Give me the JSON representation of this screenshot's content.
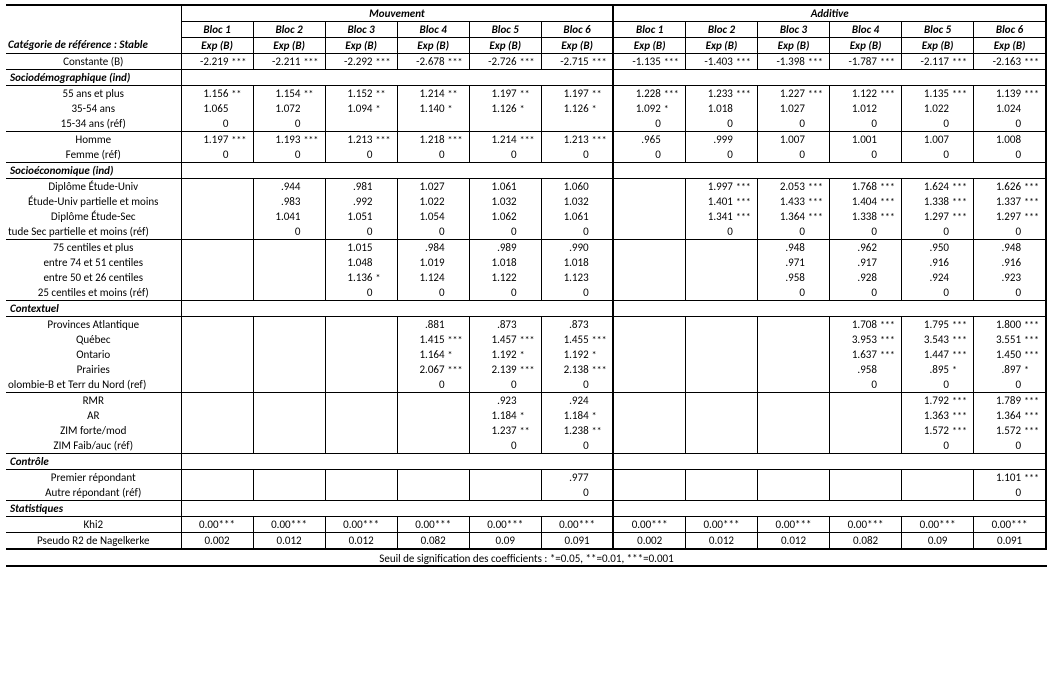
{
  "top_headers": {
    "group1": "Mouvement",
    "group2": "Additive"
  },
  "bloc_labels": [
    "Bloc 1",
    "Bloc 2",
    "Bloc 3",
    "Bloc 4",
    "Bloc 5",
    "Bloc 6"
  ],
  "expb_label": "Exp (B)",
  "ref_category_label": "Catégorie de référence : Stable",
  "sections": {
    "constante": "Constante (B)",
    "sociodemo": "Sociodémographique (ind)",
    "socioeco": "Socioéconomique (ind)",
    "contextuel": "Contextuel",
    "controle": "Contrôle",
    "stats": "Statistiques"
  },
  "row_labels": {
    "age55": "55 ans et plus",
    "age3554": "35-54 ans",
    "age1534": "15-34 ans (réf)",
    "homme": "Homme",
    "femme": "Femme (réf)",
    "dip_univ": "Diplôme Étude-Univ",
    "univ_part": "Étude-Univ partielle et moins",
    "dip_sec": "Diplôme Étude-Sec",
    "sec_part": "tude Sec partielle et moins (réf)",
    "c75": "75 centiles et plus",
    "c7451": "entre 74 et 51 centiles",
    "c5026": "entre 50 et 26 centiles",
    "c25": "25 centiles et moins (réf)",
    "atl": "Provinces Atlantique",
    "qc": "Québec",
    "on": "Ontario",
    "pr": "Prairies",
    "cb": "olombie-B et Terr du Nord (ref)",
    "rmr": "RMR",
    "ar": "AR",
    "zim_f": "ZIM forte/mod",
    "zim_faib": "ZIM Faib/auc (réf)",
    "premier": "Premier répondant",
    "autre": "Autre répondant (réf)",
    "khi2": "Khi2",
    "pr2": "Pseudo R2 de Nagelkerke"
  },
  "footnote": "Seuil de signification des coefficients : *=0.05, **=0.01, ***=0.001",
  "data": {
    "constante": {
      "m": [
        [
          "-2.219",
          "***"
        ],
        [
          "-2.211",
          "***"
        ],
        [
          "-2.292",
          "***"
        ],
        [
          "-2.678",
          "***"
        ],
        [
          "-2.726",
          "***"
        ],
        [
          "-2.715",
          "***"
        ]
      ],
      "a": [
        [
          "-1.135",
          "***"
        ],
        [
          "-1.403",
          "***"
        ],
        [
          "-1.398",
          "***"
        ],
        [
          "-1.787",
          "***"
        ],
        [
          "-2.117",
          "***"
        ],
        [
          "-2.163",
          "***"
        ]
      ]
    },
    "age55": {
      "m": [
        [
          "1.156",
          "**"
        ],
        [
          "1.154",
          "**"
        ],
        [
          "1.152",
          "**"
        ],
        [
          "1.214",
          "**"
        ],
        [
          "1.197",
          "**"
        ],
        [
          "1.197",
          "**"
        ]
      ],
      "a": [
        [
          "1.228",
          "***"
        ],
        [
          "1.233",
          "***"
        ],
        [
          "1.227",
          "***"
        ],
        [
          "1.122",
          "***"
        ],
        [
          "1.135",
          "***"
        ],
        [
          "1.139",
          "***"
        ]
      ]
    },
    "age3554": {
      "m": [
        [
          "1.065",
          ""
        ],
        [
          "1.072",
          ""
        ],
        [
          "1.094",
          "*"
        ],
        [
          "1.140",
          "*"
        ],
        [
          "1.126",
          "*"
        ],
        [
          "1.126",
          "*"
        ]
      ],
      "a": [
        [
          "1.092",
          "*"
        ],
        [
          "1.018",
          ""
        ],
        [
          "1.027",
          ""
        ],
        [
          "1.012",
          ""
        ],
        [
          "1.022",
          ""
        ],
        [
          "1.024",
          ""
        ]
      ]
    },
    "age1534": {
      "m": [
        [
          "0",
          ""
        ],
        [
          "0",
          ""
        ],
        [
          "",
          ""
        ],
        [
          "",
          ""
        ],
        [
          "",
          ""
        ],
        [
          "",
          ""
        ]
      ],
      "a": [
        [
          "0",
          ""
        ],
        [
          "0",
          ""
        ],
        [
          "0",
          ""
        ],
        [
          "0",
          ""
        ],
        [
          "0",
          ""
        ],
        [
          "0",
          ""
        ]
      ]
    },
    "homme": {
      "m": [
        [
          "1.197",
          "***"
        ],
        [
          "1.193",
          "***"
        ],
        [
          "1.213",
          "***"
        ],
        [
          "1.218",
          "***"
        ],
        [
          "1.214",
          "***"
        ],
        [
          "1.213",
          "***"
        ]
      ],
      "a": [
        [
          ".965",
          ""
        ],
        [
          ".999",
          ""
        ],
        [
          "1.007",
          ""
        ],
        [
          "1.001",
          ""
        ],
        [
          "1.007",
          ""
        ],
        [
          "1.008",
          ""
        ]
      ]
    },
    "femme": {
      "m": [
        [
          "0",
          ""
        ],
        [
          "0",
          ""
        ],
        [
          "0",
          ""
        ],
        [
          "0",
          ""
        ],
        [
          "0",
          ""
        ],
        [
          "0",
          ""
        ]
      ],
      "a": [
        [
          "0",
          ""
        ],
        [
          "0",
          ""
        ],
        [
          "0",
          ""
        ],
        [
          "0",
          ""
        ],
        [
          "0",
          ""
        ],
        [
          "0",
          ""
        ]
      ]
    },
    "dip_univ": {
      "m": [
        [
          "",
          ""
        ],
        [
          ".944",
          ""
        ],
        [
          ".981",
          ""
        ],
        [
          "1.027",
          ""
        ],
        [
          "1.061",
          ""
        ],
        [
          "1.060",
          ""
        ]
      ],
      "a": [
        [
          "",
          ""
        ],
        [
          "1.997",
          "***"
        ],
        [
          "2.053",
          "***"
        ],
        [
          "1.768",
          "***"
        ],
        [
          "1.624",
          "***"
        ],
        [
          "1.626",
          "***"
        ]
      ]
    },
    "univ_part": {
      "m": [
        [
          "",
          ""
        ],
        [
          ".983",
          ""
        ],
        [
          ".992",
          ""
        ],
        [
          "1.022",
          ""
        ],
        [
          "1.032",
          ""
        ],
        [
          "1.032",
          ""
        ]
      ],
      "a": [
        [
          "",
          ""
        ],
        [
          "1.401",
          "***"
        ],
        [
          "1.433",
          "***"
        ],
        [
          "1.404",
          "***"
        ],
        [
          "1.338",
          "***"
        ],
        [
          "1.337",
          "***"
        ]
      ]
    },
    "dip_sec": {
      "m": [
        [
          "",
          ""
        ],
        [
          "1.041",
          ""
        ],
        [
          "1.051",
          ""
        ],
        [
          "1.054",
          ""
        ],
        [
          "1.062",
          ""
        ],
        [
          "1.061",
          ""
        ]
      ],
      "a": [
        [
          "",
          ""
        ],
        [
          "1.341",
          "***"
        ],
        [
          "1.364",
          "***"
        ],
        [
          "1.338",
          "***"
        ],
        [
          "1.297",
          "***"
        ],
        [
          "1.297",
          "***"
        ]
      ]
    },
    "sec_part": {
      "m": [
        [
          "",
          ""
        ],
        [
          "0",
          ""
        ],
        [
          "0",
          ""
        ],
        [
          "0",
          ""
        ],
        [
          "0",
          ""
        ],
        [
          "0",
          ""
        ]
      ],
      "a": [
        [
          "",
          ""
        ],
        [
          "0",
          ""
        ],
        [
          "0",
          ""
        ],
        [
          "0",
          ""
        ],
        [
          "0",
          ""
        ],
        [
          "0",
          ""
        ]
      ]
    },
    "c75": {
      "m": [
        [
          "",
          ""
        ],
        [
          "",
          ""
        ],
        [
          "1.015",
          ""
        ],
        [
          ".984",
          ""
        ],
        [
          ".989",
          ""
        ],
        [
          ".990",
          ""
        ]
      ],
      "a": [
        [
          "",
          ""
        ],
        [
          "",
          ""
        ],
        [
          ".948",
          ""
        ],
        [
          ".962",
          ""
        ],
        [
          ".950",
          ""
        ],
        [
          ".948",
          ""
        ]
      ]
    },
    "c7451": {
      "m": [
        [
          "",
          ""
        ],
        [
          "",
          ""
        ],
        [
          "1.048",
          ""
        ],
        [
          "1.019",
          ""
        ],
        [
          "1.018",
          ""
        ],
        [
          "1.018",
          ""
        ]
      ],
      "a": [
        [
          "",
          ""
        ],
        [
          "",
          ""
        ],
        [
          ".971",
          ""
        ],
        [
          ".917",
          ""
        ],
        [
          ".916",
          ""
        ],
        [
          ".916",
          ""
        ]
      ]
    },
    "c5026": {
      "m": [
        [
          "",
          ""
        ],
        [
          "",
          ""
        ],
        [
          "1.136",
          "*"
        ],
        [
          "1.124",
          ""
        ],
        [
          "1.122",
          ""
        ],
        [
          "1.123",
          ""
        ]
      ],
      "a": [
        [
          "",
          ""
        ],
        [
          "",
          ""
        ],
        [
          ".958",
          ""
        ],
        [
          ".928",
          ""
        ],
        [
          ".924",
          ""
        ],
        [
          ".923",
          ""
        ]
      ]
    },
    "c25": {
      "m": [
        [
          "",
          ""
        ],
        [
          "",
          ""
        ],
        [
          "0",
          ""
        ],
        [
          "0",
          ""
        ],
        [
          "0",
          ""
        ],
        [
          "0",
          ""
        ]
      ],
      "a": [
        [
          "",
          ""
        ],
        [
          "",
          ""
        ],
        [
          "0",
          ""
        ],
        [
          "0",
          ""
        ],
        [
          "0",
          ""
        ],
        [
          "0",
          ""
        ]
      ]
    },
    "atl": {
      "m": [
        [
          "",
          ""
        ],
        [
          "",
          ""
        ],
        [
          "",
          ""
        ],
        [
          ".881",
          ""
        ],
        [
          ".873",
          ""
        ],
        [
          ".873",
          ""
        ]
      ],
      "a": [
        [
          "",
          ""
        ],
        [
          "",
          ""
        ],
        [
          "",
          ""
        ],
        [
          "1.708",
          "***"
        ],
        [
          "1.795",
          "***"
        ],
        [
          "1.800",
          "***"
        ]
      ]
    },
    "qc": {
      "m": [
        [
          "",
          ""
        ],
        [
          "",
          ""
        ],
        [
          "",
          ""
        ],
        [
          "1.415",
          "***"
        ],
        [
          "1.457",
          "***"
        ],
        [
          "1.455",
          "***"
        ]
      ],
      "a": [
        [
          "",
          ""
        ],
        [
          "",
          ""
        ],
        [
          "",
          ""
        ],
        [
          "3.953",
          "***"
        ],
        [
          "3.543",
          "***"
        ],
        [
          "3.551",
          "***"
        ]
      ]
    },
    "on": {
      "m": [
        [
          "",
          ""
        ],
        [
          "",
          ""
        ],
        [
          "",
          ""
        ],
        [
          "1.164",
          "*"
        ],
        [
          "1.192",
          "*"
        ],
        [
          "1.192",
          "*"
        ]
      ],
      "a": [
        [
          "",
          ""
        ],
        [
          "",
          ""
        ],
        [
          "",
          ""
        ],
        [
          "1.637",
          "***"
        ],
        [
          "1.447",
          "***"
        ],
        [
          "1.450",
          "***"
        ]
      ]
    },
    "pr": {
      "m": [
        [
          "",
          ""
        ],
        [
          "",
          ""
        ],
        [
          "",
          ""
        ],
        [
          "2.067",
          "***"
        ],
        [
          "2.139",
          "***"
        ],
        [
          "2.138",
          "***"
        ]
      ],
      "a": [
        [
          "",
          ""
        ],
        [
          "",
          ""
        ],
        [
          "",
          ""
        ],
        [
          ".958",
          ""
        ],
        [
          ".895",
          "*"
        ],
        [
          ".897",
          "*"
        ]
      ]
    },
    "cb": {
      "m": [
        [
          "",
          ""
        ],
        [
          "",
          ""
        ],
        [
          "",
          ""
        ],
        [
          "0",
          ""
        ],
        [
          "0",
          ""
        ],
        [
          "0",
          ""
        ]
      ],
      "a": [
        [
          "",
          ""
        ],
        [
          "",
          ""
        ],
        [
          "",
          ""
        ],
        [
          "0",
          ""
        ],
        [
          "0",
          ""
        ],
        [
          "0",
          ""
        ]
      ]
    },
    "rmr": {
      "m": [
        [
          "",
          ""
        ],
        [
          "",
          ""
        ],
        [
          "",
          ""
        ],
        [
          "",
          ""
        ],
        [
          ".923",
          ""
        ],
        [
          ".924",
          ""
        ]
      ],
      "a": [
        [
          "",
          ""
        ],
        [
          "",
          ""
        ],
        [
          "",
          ""
        ],
        [
          "",
          ""
        ],
        [
          "1.792",
          "***"
        ],
        [
          "1.789",
          "***"
        ]
      ]
    },
    "ar": {
      "m": [
        [
          "",
          ""
        ],
        [
          "",
          ""
        ],
        [
          "",
          ""
        ],
        [
          "",
          ""
        ],
        [
          "1.184",
          "*"
        ],
        [
          "1.184",
          "*"
        ]
      ],
      "a": [
        [
          "",
          ""
        ],
        [
          "",
          ""
        ],
        [
          "",
          ""
        ],
        [
          "",
          ""
        ],
        [
          "1.363",
          "***"
        ],
        [
          "1.364",
          "***"
        ]
      ]
    },
    "zim_f": {
      "m": [
        [
          "",
          ""
        ],
        [
          "",
          ""
        ],
        [
          "",
          ""
        ],
        [
          "",
          ""
        ],
        [
          "1.237",
          "**"
        ],
        [
          "1.238",
          "**"
        ]
      ],
      "a": [
        [
          "",
          ""
        ],
        [
          "",
          ""
        ],
        [
          "",
          ""
        ],
        [
          "",
          ""
        ],
        [
          "1.572",
          "***"
        ],
        [
          "1.572",
          "***"
        ]
      ]
    },
    "zim_faib": {
      "m": [
        [
          "",
          ""
        ],
        [
          "",
          ""
        ],
        [
          "",
          ""
        ],
        [
          "",
          ""
        ],
        [
          "0",
          ""
        ],
        [
          "0",
          ""
        ]
      ],
      "a": [
        [
          "",
          ""
        ],
        [
          "",
          ""
        ],
        [
          "",
          ""
        ],
        [
          "",
          ""
        ],
        [
          "0",
          ""
        ],
        [
          "0",
          ""
        ]
      ]
    },
    "premier": {
      "m": [
        [
          "",
          ""
        ],
        [
          "",
          ""
        ],
        [
          "",
          ""
        ],
        [
          "",
          ""
        ],
        [
          "",
          ""
        ],
        [
          ".977",
          ""
        ]
      ],
      "a": [
        [
          "",
          ""
        ],
        [
          "",
          ""
        ],
        [
          "",
          ""
        ],
        [
          "",
          ""
        ],
        [
          "",
          ""
        ],
        [
          "1.101",
          "***"
        ]
      ]
    },
    "autre": {
      "m": [
        [
          "",
          ""
        ],
        [
          "",
          ""
        ],
        [
          "",
          ""
        ],
        [
          "",
          ""
        ],
        [
          "",
          ""
        ],
        [
          "0",
          ""
        ]
      ],
      "a": [
        [
          "",
          ""
        ],
        [
          "",
          ""
        ],
        [
          "",
          ""
        ],
        [
          "",
          ""
        ],
        [
          "",
          ""
        ],
        [
          "0",
          ""
        ]
      ]
    },
    "khi2": {
      "m": [
        "0.00***",
        "0.00***",
        "0.00***",
        "0.00***",
        "0.00***",
        "0.00***"
      ],
      "a": [
        "0.00***",
        "0.00***",
        "0.00***",
        "0.00***",
        "0.00***",
        "0.00***"
      ]
    },
    "pr2": {
      "m": [
        "0.002",
        "0.012",
        "0.012",
        "0.082",
        "0.09",
        "0.091"
      ],
      "a": [
        "0.002",
        "0.012",
        "0.012",
        "0.082",
        "0.09",
        "0.091"
      ]
    }
  }
}
